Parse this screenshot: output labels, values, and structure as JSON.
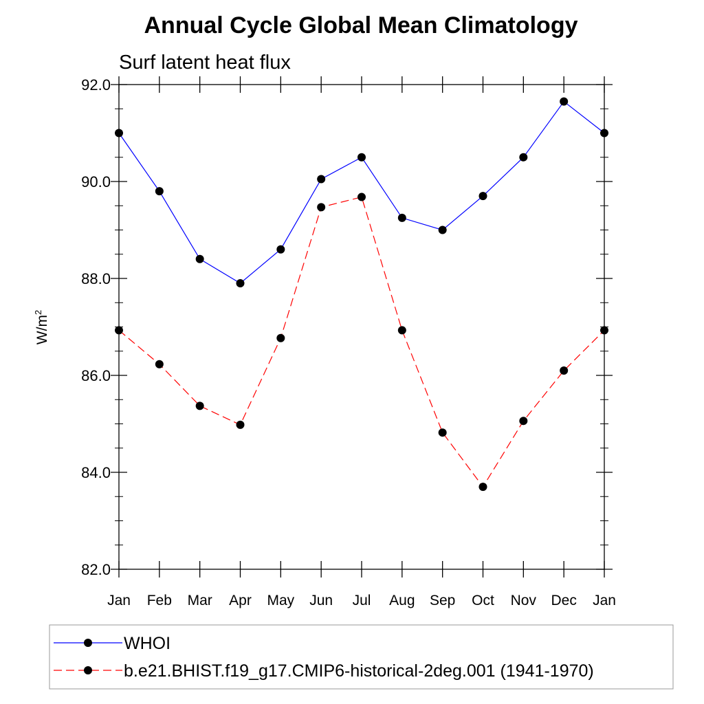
{
  "chart_data": {
    "type": "line",
    "title": "Annual Cycle Global Mean Climatology",
    "subtitle": "Surf latent heat flux",
    "ylabel": "W/m",
    "ylabel_superscript": "2",
    "ylim": [
      82.0,
      92.0
    ],
    "y_ticks": [
      "82.0",
      "84.0",
      "86.0",
      "88.0",
      "90.0",
      "92.0"
    ],
    "categories": [
      "Jan",
      "Feb",
      "Mar",
      "Apr",
      "May",
      "Jun",
      "Jul",
      "Aug",
      "Sep",
      "Oct",
      "Nov",
      "Dec",
      "Jan"
    ],
    "series": [
      {
        "name": "WHOI",
        "color": "#0000ff",
        "style": "solid",
        "marker": "circle",
        "values": [
          91.0,
          89.8,
          88.4,
          87.9,
          88.6,
          90.05,
          90.5,
          89.25,
          89.0,
          89.7,
          90.5,
          91.65,
          91.0
        ]
      },
      {
        "name": "b.e21.BHIST.f19_g17.CMIP6-historical-2deg.001 (1941-1970)",
        "color": "#ff0000",
        "style": "dashed",
        "marker": "circle",
        "values": [
          86.93,
          86.23,
          85.37,
          84.98,
          86.77,
          89.47,
          89.68,
          86.93,
          84.82,
          83.7,
          85.06,
          86.1,
          86.93
        ]
      }
    ],
    "legend_position": "bottom"
  }
}
